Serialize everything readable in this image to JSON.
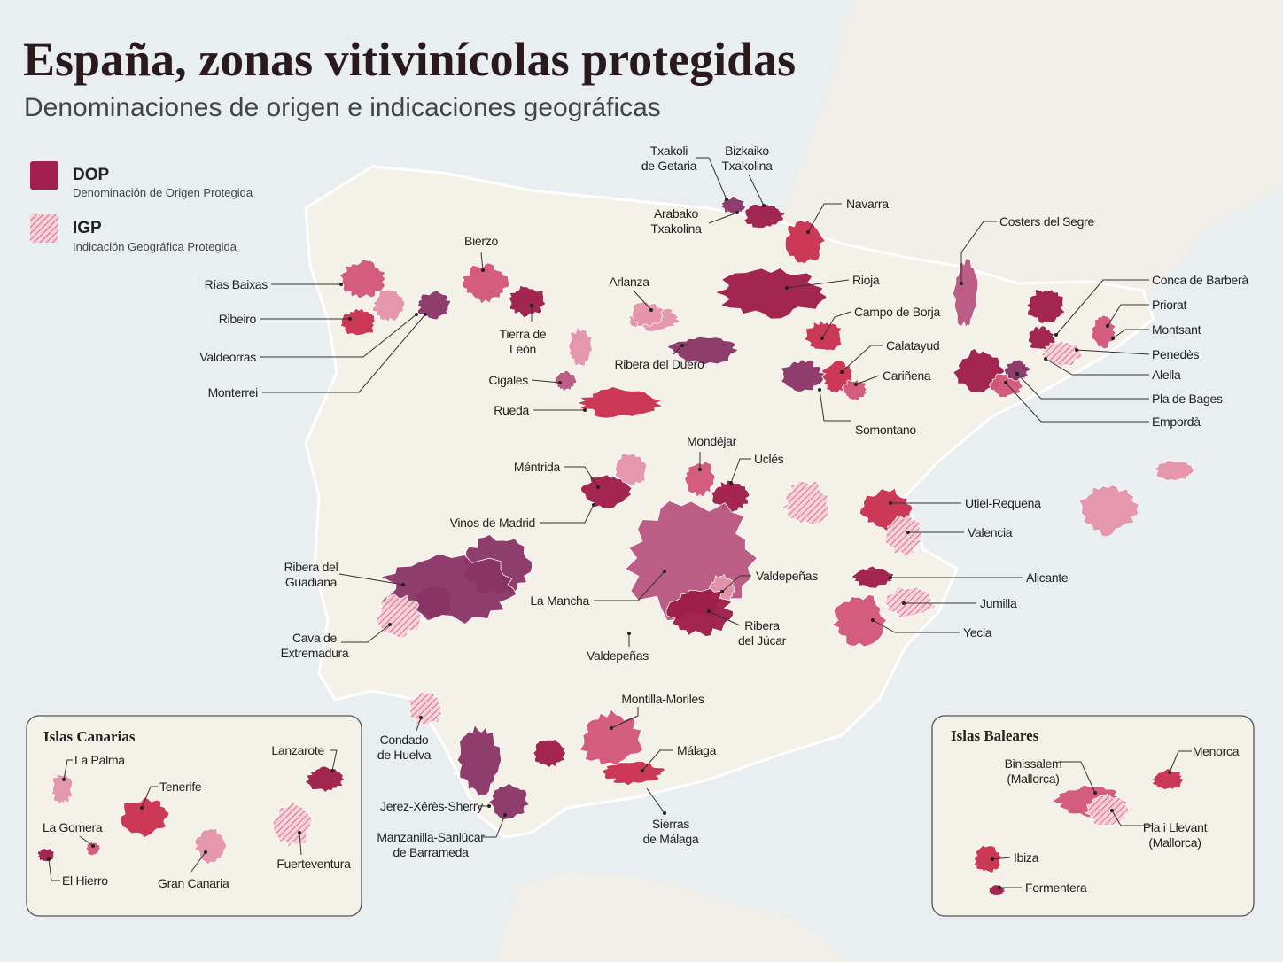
{
  "header": {
    "title": "España, zonas vitivinícolas protegidas",
    "subtitle": "Denominaciones de origen e indicaciones geográficas"
  },
  "legend": [
    {
      "label": "DOP",
      "description": "Denominación de Origen Protegida"
    },
    {
      "label": "IGP",
      "description": "Indicación Geográfica Protegida"
    }
  ],
  "regions": [
    {
      "label": [
        "Txakoli",
        "de Getaria"
      ]
    },
    {
      "label": [
        "Bizkaiko",
        "Txakolina"
      ]
    },
    {
      "label": [
        "Arabako",
        "Txakolina"
      ]
    },
    {
      "label": [
        "Navarra"
      ]
    },
    {
      "label": [
        "Costers del Segre"
      ]
    },
    {
      "label": [
        "Rioja"
      ]
    },
    {
      "label": [
        "Campo de Borja"
      ]
    },
    {
      "label": [
        "Calatayud"
      ]
    },
    {
      "label": [
        "Cariñena"
      ]
    },
    {
      "label": [
        "Somontano"
      ]
    },
    {
      "label": [
        "Conca de Barberà"
      ]
    },
    {
      "label": [
        "Priorat"
      ]
    },
    {
      "label": [
        "Montsant"
      ]
    },
    {
      "label": [
        "Penedès"
      ]
    },
    {
      "label": [
        "Alella"
      ]
    },
    {
      "label": [
        "Pla de Bages"
      ]
    },
    {
      "label": [
        "Empordà"
      ]
    },
    {
      "label": [
        "Bierzo"
      ]
    },
    {
      "label": [
        "Rías Baixas"
      ]
    },
    {
      "label": [
        "Ribeiro"
      ]
    },
    {
      "label": [
        "Valdeorras"
      ]
    },
    {
      "label": [
        "Monterrei"
      ]
    },
    {
      "label": [
        "Tierra de",
        "León"
      ]
    },
    {
      "label": [
        "Arlanza"
      ]
    },
    {
      "label": [
        "Ribera del Duero"
      ]
    },
    {
      "label": [
        "Cigales"
      ]
    },
    {
      "label": [
        "Rueda"
      ]
    },
    {
      "label": [
        "Méntrida"
      ]
    },
    {
      "label": [
        "Vinos de Madrid"
      ]
    },
    {
      "label": [
        "Mondéjar"
      ]
    },
    {
      "label": [
        "Uclés"
      ]
    },
    {
      "label": [
        "Ribera del",
        "Guadiana"
      ]
    },
    {
      "label": [
        "Cava de",
        "Extremadura"
      ]
    },
    {
      "label": [
        "La Mancha"
      ]
    },
    {
      "label": [
        "Valdepeñas"
      ]
    },
    {
      "label": [
        "Ribera",
        "del Júcar"
      ]
    },
    {
      "label": [
        "Valdepeñas"
      ]
    },
    {
      "label": [
        "Utiel-Requena"
      ]
    },
    {
      "label": [
        "Valencia"
      ]
    },
    {
      "label": [
        "Alicante"
      ]
    },
    {
      "label": [
        "Jumilla"
      ]
    },
    {
      "label": [
        "Yecla"
      ]
    },
    {
      "label": [
        "Montilla-Moriles"
      ]
    },
    {
      "label": [
        "Condado",
        "de Huelva"
      ]
    },
    {
      "label": [
        "Jerez-Xérès-Sherry"
      ]
    },
    {
      "label": [
        "Manzanilla-Sanlúcar",
        "de Barrameda"
      ]
    },
    {
      "label": [
        "Málaga"
      ]
    },
    {
      "label": [
        "Sierras",
        "de Málaga"
      ]
    }
  ],
  "insets": [
    {
      "title": "Islas Canarias",
      "labels": [
        [
          "La Palma"
        ],
        [
          "Tenerife"
        ],
        [
          "La Gomera"
        ],
        [
          "El Hierro"
        ],
        [
          "Gran Canaria"
        ],
        [
          "Lanzarote"
        ],
        [
          "Fuerteventura"
        ]
      ]
    },
    {
      "title": "Islas Baleares",
      "labels": [
        [
          "Binissalem",
          "(Mallorca)"
        ],
        [
          "Menorca"
        ],
        [
          "Pla i Llevant",
          "(Mallorca)"
        ],
        [
          "Ibiza"
        ],
        [
          "Formentera"
        ]
      ]
    }
  ]
}
